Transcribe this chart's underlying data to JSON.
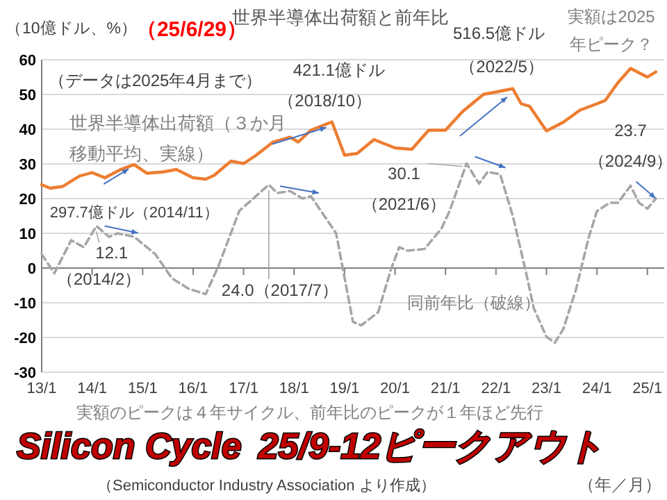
{
  "chart_data": {
    "type": "line",
    "title": "世界半導体出荷額と前年比",
    "ylabel": "（10億ドル、%）",
    "xlabel": "（年／月）",
    "xlim": [
      "2013-01",
      "2025-05"
    ],
    "xticks": [
      {
        "value": "2013-01",
        "label": "13/1"
      },
      {
        "value": "2014-01",
        "label": "14/1"
      },
      {
        "value": "2015-01",
        "label": "15/1"
      },
      {
        "value": "2016-01",
        "label": "16/1"
      },
      {
        "value": "2017-01",
        "label": "17/1"
      },
      {
        "value": "2018-01",
        "label": "18/1"
      },
      {
        "value": "2019-01",
        "label": "19/1"
      },
      {
        "value": "2020-01",
        "label": "20/1"
      },
      {
        "value": "2021-01",
        "label": "21/1"
      },
      {
        "value": "2022-01",
        "label": "22/1"
      },
      {
        "value": "2023-01",
        "label": "23/1"
      },
      {
        "value": "2024-01",
        "label": "24/1"
      },
      {
        "value": "2025-01",
        "label": "25/1"
      }
    ],
    "ylim": [
      -30,
      60
    ],
    "yticks": [
      -30,
      -20,
      -10,
      0,
      10,
      20,
      30,
      40,
      50,
      60
    ],
    "grid": "y",
    "legend": false,
    "marker": "none",
    "series": [
      {
        "name": "世界半導体出荷額（３か月移動平均、実線）",
        "color": "#ed7d31",
        "line_style": "solid",
        "x": [
          "2013-01",
          "2013-03",
          "2013-06",
          "2013-10",
          "2014-01",
          "2014-04",
          "2014-08",
          "2014-11",
          "2015-02",
          "2015-06",
          "2015-09",
          "2016-01",
          "2016-04",
          "2016-06",
          "2016-10",
          "2017-01",
          "2017-04",
          "2017-08",
          "2017-12",
          "2018-02",
          "2018-05",
          "2018-10",
          "2019-01",
          "2019-04",
          "2019-08",
          "2020-01",
          "2020-05",
          "2020-09",
          "2021-01",
          "2021-05",
          "2021-10",
          "2022-05",
          "2022-07",
          "2022-09",
          "2023-01",
          "2023-05",
          "2023-09",
          "2024-01",
          "2024-03",
          "2024-06",
          "2024-09",
          "2025-01",
          "2025-03"
        ],
        "values": [
          24.0,
          23.0,
          23.5,
          26.5,
          27.5,
          26.0,
          28.5,
          29.77,
          27.3,
          27.7,
          28.4,
          26.0,
          25.6,
          26.7,
          30.8,
          30.1,
          32.5,
          36.3,
          37.7,
          36.3,
          39.7,
          42.11,
          32.5,
          33.0,
          37.0,
          34.6,
          34.2,
          39.7,
          39.7,
          45.0,
          50.0,
          51.65,
          47.3,
          46.6,
          39.5,
          42.0,
          45.5,
          47.3,
          48.3,
          53.4,
          57.5,
          55.0,
          56.5
        ]
      },
      {
        "name": "同前年比（破線）",
        "color": "#a6a6a6",
        "line_style": "dashed",
        "x": [
          "2013-01",
          "2013-04",
          "2013-08",
          "2013-11",
          "2014-02",
          "2014-05",
          "2014-07",
          "2014-11",
          "2015-04",
          "2015-08",
          "2015-12",
          "2016-04",
          "2016-07",
          "2016-12",
          "2017-07",
          "2017-09",
          "2017-12",
          "2018-03",
          "2018-05",
          "2018-11",
          "2019-03",
          "2019-05",
          "2019-09",
          "2019-12",
          "2020-02",
          "2020-04",
          "2020-08",
          "2020-12",
          "2021-02",
          "2021-06",
          "2021-09",
          "2021-11",
          "2022-02",
          "2022-05",
          "2022-08",
          "2022-10",
          "2023-01",
          "2023-03",
          "2023-05",
          "2023-08",
          "2023-11",
          "2024-01",
          "2024-04",
          "2024-06",
          "2024-09",
          "2024-11",
          "2025-01",
          "2025-03"
        ],
        "values": [
          4,
          -1.5,
          8,
          6,
          12.1,
          9,
          10,
          9,
          4,
          -3,
          -6,
          -7.5,
          0.5,
          16.5,
          24.0,
          21.6,
          22.2,
          20,
          20.7,
          10,
          -15.5,
          -16.5,
          -12.7,
          -0.5,
          6,
          5,
          5.5,
          11.3,
          16.5,
          30.1,
          24.3,
          27.7,
          27,
          15,
          -0.5,
          -11.6,
          -19.8,
          -21.5,
          -17.6,
          -6.3,
          8.6,
          16.4,
          18.8,
          18.8,
          23.7,
          18.8,
          17.1,
          20
        ]
      }
    ],
    "annotations": [
      "（データは2025年4月まで）",
      {
        "text": "297.7億ドル（2014/11）",
        "x": "2014-11",
        "y": 29.77
      },
      {
        "text": "421.1億ドル",
        "x": "2018-10",
        "y": 42.11
      },
      {
        "text": "（2018/10）",
        "x": "2018-10",
        "y": 42.11
      },
      {
        "text": "516.5億ドル",
        "x": "2022-05",
        "y": 51.65
      },
      {
        "text": "（2022/5）",
        "x": "2022-05",
        "y": 51.65
      },
      {
        "text": "12.1",
        "x": "2014-02",
        "y": 12.1
      },
      {
        "text": "（2014/2）",
        "x": "2014-02",
        "y": 12.1
      },
      {
        "text": "24.0（2017/7）",
        "x": "2017-07",
        "y": 24.0
      },
      {
        "text": "30.1",
        "x": "2021-06",
        "y": 30.1
      },
      {
        "text": "（2021/6）",
        "x": "2021-06",
        "y": 30.1
      },
      {
        "text": "23.7",
        "x": "2024-09",
        "y": 23.7
      },
      {
        "text": "（2024/9）",
        "x": "2024-09",
        "y": 23.7
      },
      "実額は2025年ピーク？",
      "実額のピークは４年サイクル、前年比のピークが１年ほど先行",
      "（Semiconductor Industry Association より作成）",
      "Silicon Cycle",
      "25/9-12ピークアウト",
      "（25/6/29）"
    ]
  }
}
